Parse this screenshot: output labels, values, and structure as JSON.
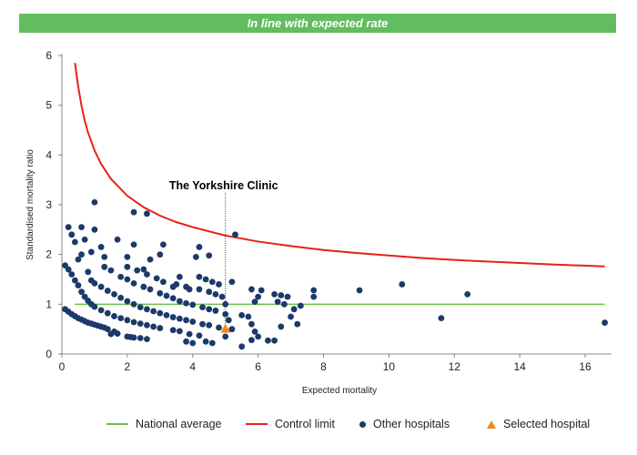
{
  "banner": {
    "text": "In line with expected rate",
    "color": "#62bd5e"
  },
  "chart_data": {
    "type": "scatter",
    "xlabel": "Expected mortality",
    "ylabel": "Standardised mortality ratio",
    "xlim": [
      0,
      16.8
    ],
    "ylim": [
      0,
      6
    ],
    "xticks": [
      0,
      2,
      4,
      6,
      8,
      10,
      12,
      14,
      16
    ],
    "yticks": [
      0,
      1,
      2,
      3,
      4,
      5,
      6
    ],
    "grid": false,
    "legend_placement": "bottom",
    "annotation": {
      "text": "The Yorkshire Clinic",
      "x": 5.0
    },
    "national_average": {
      "name": "National average",
      "value": 1,
      "x_range": [
        0.4,
        16.6
      ],
      "color": "#6abf4b"
    },
    "control_limit": {
      "name": "Control limit",
      "color": "#e8201a",
      "points": [
        [
          0.4,
          5.85
        ],
        [
          0.5,
          5.37
        ],
        [
          0.6,
          4.99
        ],
        [
          0.7,
          4.69
        ],
        [
          0.8,
          4.45
        ],
        [
          1,
          4.09
        ],
        [
          1.2,
          3.82
        ],
        [
          1.5,
          3.52
        ],
        [
          2,
          3.18
        ],
        [
          2.5,
          2.95
        ],
        [
          3,
          2.78
        ],
        [
          3.5,
          2.65
        ],
        [
          4,
          2.55
        ],
        [
          5,
          2.38
        ],
        [
          6,
          2.26
        ],
        [
          7,
          2.17
        ],
        [
          8,
          2.09
        ],
        [
          9,
          2.03
        ],
        [
          10,
          1.98
        ],
        [
          11,
          1.93
        ],
        [
          12,
          1.89
        ],
        [
          13,
          1.86
        ],
        [
          14,
          1.83
        ],
        [
          15,
          1.8
        ],
        [
          16.6,
          1.76
        ]
      ]
    },
    "series": [
      {
        "name": "Other hospitals",
        "color": "#1b3a6b",
        "marker": "circle",
        "points": [
          [
            0.1,
            0.9
          ],
          [
            0.2,
            0.85
          ],
          [
            0.3,
            0.8
          ],
          [
            0.4,
            0.76
          ],
          [
            0.5,
            0.72
          ],
          [
            0.6,
            0.69
          ],
          [
            0.7,
            0.66
          ],
          [
            0.8,
            0.63
          ],
          [
            0.9,
            0.61
          ],
          [
            1.0,
            0.59
          ],
          [
            1.1,
            0.57
          ],
          [
            1.2,
            0.55
          ],
          [
            1.3,
            0.53
          ],
          [
            1.4,
            0.5
          ],
          [
            1.6,
            0.45
          ],
          [
            1.7,
            0.41
          ],
          [
            2.0,
            0.35
          ],
          [
            2.1,
            0.34
          ],
          [
            2.2,
            0.33
          ],
          [
            2.4,
            0.32
          ],
          [
            2.6,
            0.3
          ],
          [
            3.8,
            0.25
          ],
          [
            1.5,
            0.4
          ],
          [
            0.1,
            1.78
          ],
          [
            0.2,
            1.7
          ],
          [
            0.3,
            1.6
          ],
          [
            0.4,
            1.48
          ],
          [
            0.5,
            1.38
          ],
          [
            0.6,
            1.25
          ],
          [
            0.7,
            1.15
          ],
          [
            0.8,
            1.07
          ],
          [
            0.9,
            1.0
          ],
          [
            1.0,
            0.95
          ],
          [
            1.2,
            0.88
          ],
          [
            1.4,
            0.82
          ],
          [
            1.6,
            0.76
          ],
          [
            1.8,
            0.72
          ],
          [
            2.0,
            0.68
          ],
          [
            2.2,
            0.64
          ],
          [
            2.4,
            0.61
          ],
          [
            2.6,
            0.58
          ],
          [
            2.8,
            0.55
          ],
          [
            3.0,
            0.52
          ],
          [
            3.4,
            0.48
          ],
          [
            3.6,
            0.46
          ],
          [
            3.9,
            0.4
          ],
          [
            4.2,
            0.37
          ],
          [
            0.9,
            1.48
          ],
          [
            1.0,
            1.42
          ],
          [
            1.2,
            1.35
          ],
          [
            1.4,
            1.27
          ],
          [
            1.6,
            1.2
          ],
          [
            1.8,
            1.13
          ],
          [
            2.0,
            1.06
          ],
          [
            2.2,
            1.0
          ],
          [
            2.4,
            0.94
          ],
          [
            2.6,
            0.9
          ],
          [
            2.8,
            0.86
          ],
          [
            3.0,
            0.82
          ],
          [
            3.2,
            0.78
          ],
          [
            3.4,
            0.74
          ],
          [
            3.6,
            0.71
          ],
          [
            3.8,
            0.68
          ],
          [
            4.0,
            0.65
          ],
          [
            4.3,
            0.6
          ],
          [
            4.5,
            0.58
          ],
          [
            4.8,
            0.53
          ],
          [
            5.2,
            0.5
          ],
          [
            1.3,
            1.75
          ],
          [
            1.5,
            1.68
          ],
          [
            1.8,
            1.55
          ],
          [
            2.0,
            1.5
          ],
          [
            2.2,
            1.42
          ],
          [
            2.5,
            1.35
          ],
          [
            2.7,
            1.3
          ],
          [
            3.0,
            1.22
          ],
          [
            3.2,
            1.17
          ],
          [
            3.4,
            1.12
          ],
          [
            3.6,
            1.06
          ],
          [
            3.8,
            1.02
          ],
          [
            4.0,
            0.99
          ],
          [
            4.3,
            0.94
          ],
          [
            4.5,
            0.9
          ],
          [
            4.7,
            0.87
          ],
          [
            5.0,
            0.8
          ],
          [
            2.0,
            1.75
          ],
          [
            2.3,
            1.68
          ],
          [
            2.6,
            1.6
          ],
          [
            2.9,
            1.52
          ],
          [
            3.1,
            1.45
          ],
          [
            3.5,
            1.4
          ],
          [
            3.8,
            1.35
          ],
          [
            4.2,
            1.3
          ],
          [
            4.5,
            1.25
          ],
          [
            4.7,
            1.2
          ],
          [
            4.9,
            1.15
          ],
          [
            4.2,
            1.55
          ],
          [
            4.4,
            1.5
          ],
          [
            4.6,
            1.45
          ],
          [
            4.8,
            1.4
          ],
          [
            0.2,
            2.55
          ],
          [
            0.3,
            2.4
          ],
          [
            0.4,
            2.25
          ],
          [
            0.6,
            2.55
          ],
          [
            0.7,
            2.3
          ],
          [
            1.0,
            3.05
          ],
          [
            1.0,
            2.5
          ],
          [
            1.2,
            2.15
          ],
          [
            0.6,
            2.0
          ],
          [
            0.9,
            2.05
          ],
          [
            1.3,
            1.95
          ],
          [
            0.5,
            1.9
          ],
          [
            0.8,
            1.65
          ],
          [
            2.2,
            2.85
          ],
          [
            2.6,
            2.82
          ],
          [
            2.2,
            2.2
          ],
          [
            2.0,
            1.95
          ],
          [
            1.7,
            2.3
          ],
          [
            3.1,
            2.2
          ],
          [
            3.0,
            2.0
          ],
          [
            2.7,
            1.9
          ],
          [
            4.2,
            2.15
          ],
          [
            4.1,
            1.95
          ],
          [
            4.5,
            1.98
          ],
          [
            5.3,
            2.4
          ],
          [
            3.6,
            1.55
          ],
          [
            3.4,
            1.35
          ],
          [
            2.5,
            1.7
          ],
          [
            3.9,
            1.3
          ],
          [
            5.2,
            1.45
          ],
          [
            5.0,
            0.35
          ],
          [
            4.6,
            0.22
          ],
          [
            4.0,
            0.22
          ],
          [
            4.4,
            0.25
          ],
          [
            5.1,
            0.68
          ],
          [
            5.0,
            1.0
          ],
          [
            5.5,
            0.78
          ],
          [
            5.7,
            0.75
          ],
          [
            5.8,
            0.6
          ],
          [
            5.9,
            0.45
          ],
          [
            5.8,
            1.3
          ],
          [
            5.9,
            1.05
          ],
          [
            6.0,
            1.15
          ],
          [
            6.1,
            1.28
          ],
          [
            6.0,
            0.35
          ],
          [
            5.5,
            0.15
          ],
          [
            5.8,
            0.28
          ],
          [
            6.3,
            0.27
          ],
          [
            6.5,
            0.27
          ],
          [
            6.5,
            1.2
          ],
          [
            6.6,
            1.05
          ],
          [
            6.7,
            1.18
          ],
          [
            6.8,
            1.0
          ],
          [
            6.7,
            0.55
          ],
          [
            6.9,
            1.15
          ],
          [
            7.0,
            0.75
          ],
          [
            7.1,
            0.9
          ],
          [
            7.2,
            0.6
          ],
          [
            7.3,
            0.97
          ],
          [
            7.7,
            1.28
          ],
          [
            7.7,
            1.15
          ],
          [
            9.1,
            1.28
          ],
          [
            10.4,
            1.4
          ],
          [
            11.6,
            0.72
          ],
          [
            12.4,
            1.2
          ],
          [
            16.6,
            0.63
          ]
        ]
      },
      {
        "name": "Selected hospital",
        "color": "#f08a1c",
        "marker": "triangle",
        "points": [
          [
            5.0,
            0.5
          ]
        ]
      }
    ]
  }
}
